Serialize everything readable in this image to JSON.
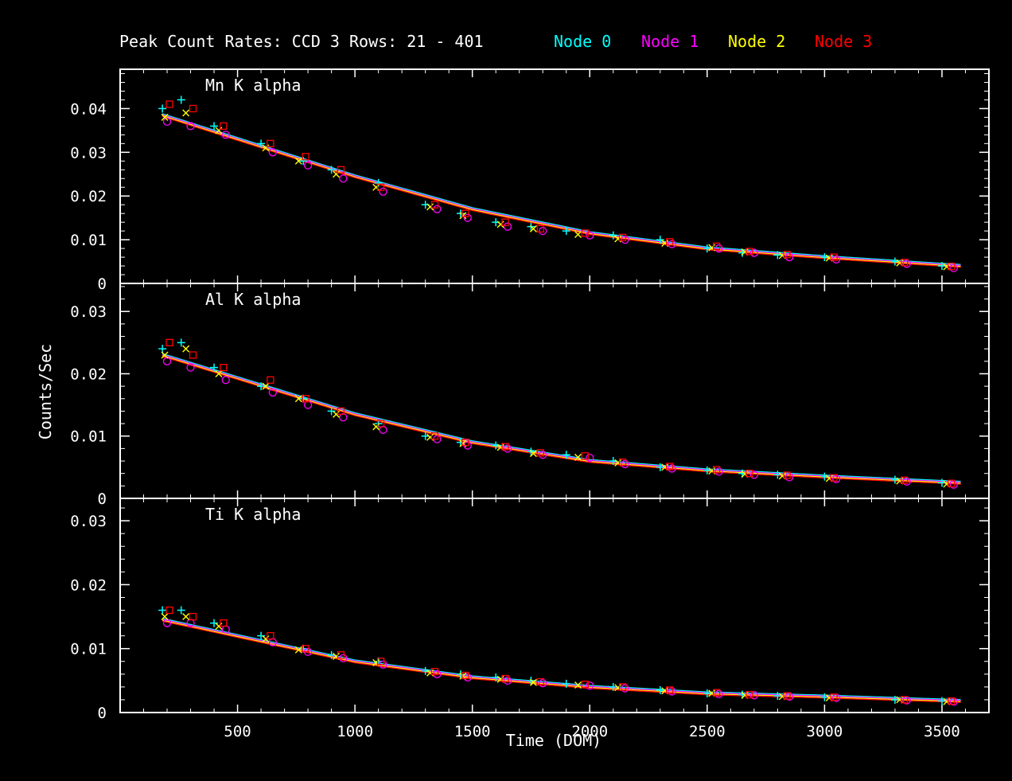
{
  "title": "Peak Count Rates: CCD 3 Rows: 21 - 401",
  "legend": [
    {
      "label": "Node 0",
      "color": "#00ffff"
    },
    {
      "label": "Node 1",
      "color": "#ff00ff"
    },
    {
      "label": "Node 2",
      "color": "#ffff00"
    },
    {
      "label": "Node 3",
      "color": "#ff0000"
    }
  ],
  "xlabel": "Time (DOM)",
  "ylabel": "Counts/Sec",
  "chart_data": {
    "type": "scatter",
    "xlabel": "Time (DOM)",
    "ylabel": "Counts/Sec",
    "xlim": [
      0,
      3700
    ],
    "xticks": [
      "500",
      "1000",
      "1500",
      "2000",
      "2500",
      "3000",
      "3500"
    ],
    "markers": {
      "Node 0": "plus",
      "Node 1": "circle",
      "Node 2": "cross",
      "Node 3": "square"
    },
    "panels": [
      {
        "title": "Mn K alpha",
        "ylim": [
          0,
          0.049
        ],
        "yticks": [
          "0.04",
          "0.03",
          "0.02",
          "0.01",
          "0"
        ],
        "trend": {
          "x": [
            180,
            1000,
            1500,
            2000,
            2500,
            3000,
            3580
          ],
          "y": [
            0.0385,
            0.0245,
            0.017,
            0.0115,
            0.008,
            0.006,
            0.004
          ]
        },
        "series": [
          {
            "name": "Node 0",
            "x": [
              180,
              260,
              400,
              600,
              780,
              900,
              1100,
              1300,
              1450,
              1600,
              1750,
              1900,
              2100,
              2300,
              2500,
              2650,
              2800,
              3000,
              3300,
              3500
            ],
            "y": [
              0.04,
              0.042,
              0.036,
              0.032,
              0.028,
              0.026,
              0.023,
              0.018,
              0.016,
              0.014,
              0.013,
              0.012,
              0.011,
              0.01,
              0.008,
              0.007,
              0.0065,
              0.006,
              0.005,
              0.004
            ]
          },
          {
            "name": "Node 1",
            "x": [
              200,
              300,
              450,
              650,
              800,
              950,
              1120,
              1350,
              1480,
              1650,
              1800,
              2000,
              2150,
              2350,
              2550,
              2700,
              2850,
              3050,
              3350,
              3550
            ],
            "y": [
              0.037,
              0.036,
              0.034,
              0.03,
              0.027,
              0.024,
              0.021,
              0.017,
              0.015,
              0.013,
              0.012,
              0.011,
              0.01,
              0.009,
              0.008,
              0.007,
              0.006,
              0.0055,
              0.0045,
              0.0035
            ]
          },
          {
            "name": "Node 2",
            "x": [
              190,
              280,
              420,
              620,
              760,
              920,
              1090,
              1320,
              1460,
              1620,
              1760,
              1950,
              2120,
              2320,
              2520,
              2660,
              2820,
              3020,
              3320,
              3520
            ],
            "y": [
              0.038,
              0.039,
              0.035,
              0.031,
              0.028,
              0.025,
              0.022,
              0.0175,
              0.0155,
              0.0135,
              0.0125,
              0.0112,
              0.0102,
              0.0092,
              0.0082,
              0.0072,
              0.0064,
              0.0058,
              0.0047,
              0.0038
            ]
          },
          {
            "name": "Node 3",
            "x": [
              210,
              310,
              440,
              640,
              790,
              940,
              1110,
              1340,
              1470,
              1640,
              1790,
              1980,
              2140,
              2340,
              2540,
              2680,
              2840,
              3040,
              3340,
              3540
            ],
            "y": [
              0.041,
              0.04,
              0.036,
              0.032,
              0.029,
              0.026,
              0.022,
              0.018,
              0.016,
              0.014,
              0.0125,
              0.0115,
              0.0105,
              0.0095,
              0.0085,
              0.0073,
              0.0066,
              0.006,
              0.0048,
              0.0039
            ]
          }
        ]
      },
      {
        "title": "Al K alpha",
        "ylim": [
          0,
          0.0345
        ],
        "yticks": [
          "0.03",
          "0.02",
          "0.01",
          "0"
        ],
        "trend": {
          "x": [
            180,
            1000,
            1500,
            2000,
            2500,
            3000,
            3580
          ],
          "y": [
            0.023,
            0.0135,
            0.009,
            0.006,
            0.0045,
            0.0035,
            0.0025
          ]
        },
        "series": [
          {
            "name": "Node 0",
            "x": [
              180,
              260,
              400,
              600,
              780,
              900,
              1100,
              1300,
              1450,
              1600,
              1750,
              1900,
              2100,
              2300,
              2500,
              2650,
              2800,
              3000,
              3300,
              3500
            ],
            "y": [
              0.024,
              0.025,
              0.021,
              0.018,
              0.016,
              0.014,
              0.012,
              0.01,
              0.009,
              0.0085,
              0.0075,
              0.007,
              0.006,
              0.005,
              0.0045,
              0.004,
              0.0038,
              0.0035,
              0.003,
              0.0025
            ]
          },
          {
            "name": "Node 1",
            "x": [
              200,
              300,
              450,
              650,
              800,
              950,
              1120,
              1350,
              1480,
              1650,
              1800,
              2000,
              2150,
              2350,
              2550,
              2700,
              2850,
              3050,
              3350,
              3550
            ],
            "y": [
              0.022,
              0.021,
              0.019,
              0.017,
              0.015,
              0.013,
              0.011,
              0.0095,
              0.0085,
              0.008,
              0.007,
              0.0065,
              0.0055,
              0.0048,
              0.0043,
              0.0038,
              0.0034,
              0.0031,
              0.0027,
              0.0022
            ]
          },
          {
            "name": "Node 2",
            "x": [
              190,
              280,
              420,
              620,
              760,
              920,
              1090,
              1320,
              1460,
              1620,
              1760,
              1950,
              2120,
              2320,
              2520,
              2660,
              2820,
              3020,
              3320,
              3520
            ],
            "y": [
              0.023,
              0.024,
              0.02,
              0.018,
              0.016,
              0.0135,
              0.0115,
              0.0098,
              0.0088,
              0.0082,
              0.0072,
              0.0066,
              0.0057,
              0.005,
              0.0044,
              0.0039,
              0.0036,
              0.0032,
              0.0028,
              0.0023
            ]
          },
          {
            "name": "Node 3",
            "x": [
              210,
              310,
              440,
              640,
              790,
              940,
              1110,
              1340,
              1470,
              1640,
              1790,
              1980,
              2140,
              2340,
              2540,
              2680,
              2840,
              3040,
              3340,
              3540
            ],
            "y": [
              0.025,
              0.023,
              0.021,
              0.019,
              0.016,
              0.014,
              0.012,
              0.01,
              0.009,
              0.0083,
              0.0073,
              0.0068,
              0.0058,
              0.0051,
              0.0046,
              0.004,
              0.0037,
              0.0033,
              0.0029,
              0.0024
            ]
          }
        ]
      },
      {
        "title": "Ti K alpha",
        "ylim": [
          0,
          0.0335
        ],
        "yticks": [
          "0.03",
          "0.02",
          "0.01",
          "0"
        ],
        "trend": {
          "x": [
            180,
            1000,
            1500,
            2000,
            2500,
            3000,
            3580
          ],
          "y": [
            0.0145,
            0.008,
            0.0055,
            0.004,
            0.003,
            0.0025,
            0.0018
          ]
        },
        "series": [
          {
            "name": "Node 0",
            "x": [
              180,
              260,
              400,
              600,
              780,
              900,
              1100,
              1300,
              1450,
              1600,
              1750,
              1900,
              2100,
              2300,
              2500,
              2650,
              2800,
              3000,
              3300,
              3500
            ],
            "y": [
              0.016,
              0.016,
              0.014,
              0.012,
              0.01,
              0.009,
              0.008,
              0.0065,
              0.006,
              0.0055,
              0.005,
              0.0045,
              0.004,
              0.0035,
              0.003,
              0.0028,
              0.0026,
              0.0024,
              0.002,
              0.0018
            ]
          },
          {
            "name": "Node 1",
            "x": [
              200,
              300,
              450,
              650,
              800,
              950,
              1120,
              1350,
              1480,
              1650,
              1800,
              2000,
              2150,
              2350,
              2550,
              2700,
              2850,
              3050,
              3350,
              3550
            ],
            "y": [
              0.014,
              0.014,
              0.013,
              0.011,
              0.0095,
              0.0085,
              0.0075,
              0.006,
              0.0055,
              0.005,
              0.0046,
              0.0042,
              0.0038,
              0.0033,
              0.0029,
              0.0027,
              0.0025,
              0.0023,
              0.0019,
              0.0017
            ]
          },
          {
            "name": "Node 2",
            "x": [
              190,
              280,
              420,
              620,
              760,
              920,
              1090,
              1320,
              1460,
              1620,
              1760,
              1950,
              2120,
              2320,
              2520,
              2660,
              2820,
              3020,
              3320,
              3520
            ],
            "y": [
              0.015,
              0.015,
              0.0135,
              0.0115,
              0.0098,
              0.0088,
              0.0078,
              0.0062,
              0.0057,
              0.0052,
              0.0047,
              0.0043,
              0.0039,
              0.0034,
              0.003,
              0.0027,
              0.0025,
              0.0023,
              0.002,
              0.0017
            ]
          },
          {
            "name": "Node 3",
            "x": [
              210,
              310,
              440,
              640,
              790,
              940,
              1110,
              1340,
              1470,
              1640,
              1790,
              1980,
              2140,
              2340,
              2540,
              2680,
              2840,
              3040,
              3340,
              3540
            ],
            "y": [
              0.016,
              0.015,
              0.014,
              0.012,
              0.01,
              0.009,
              0.008,
              0.0064,
              0.0058,
              0.0053,
              0.0048,
              0.0044,
              0.004,
              0.0035,
              0.0031,
              0.0028,
              0.0026,
              0.0024,
              0.002,
              0.0018
            ]
          }
        ]
      }
    ]
  }
}
